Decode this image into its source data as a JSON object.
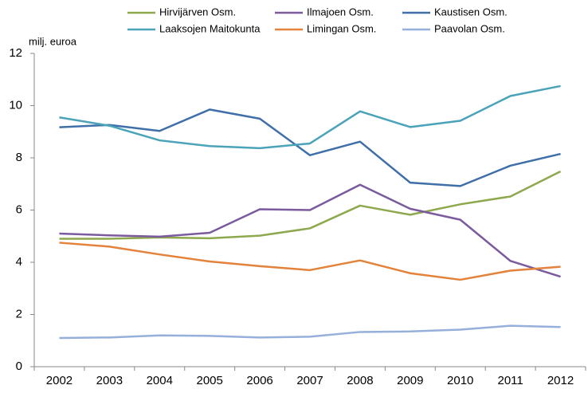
{
  "chart_data": {
    "type": "line",
    "y_axis_label": "milj. euroa",
    "categories": [
      "2002",
      "2003",
      "2004",
      "2005",
      "2006",
      "2007",
      "2008",
      "2009",
      "2010",
      "2011",
      "2012"
    ],
    "series": [
      {
        "name": "Hirvijärven Osm.",
        "color": "#8ea84d",
        "values": [
          4.9,
          4.9,
          4.95,
          4.92,
          5.02,
          5.3,
          6.17,
          5.82,
          6.22,
          6.52,
          7.48
        ]
      },
      {
        "name": "Ilmajoen Osm.",
        "color": "#7b5a9e",
        "values": [
          5.1,
          5.03,
          4.98,
          5.13,
          6.03,
          6.0,
          6.97,
          6.05,
          5.63,
          4.05,
          3.45
        ]
      },
      {
        "name": "Kaustisen Osm.",
        "color": "#3f6fa9",
        "values": [
          9.17,
          9.26,
          9.03,
          9.85,
          9.5,
          8.1,
          8.62,
          7.05,
          6.92,
          7.7,
          8.15
        ]
      },
      {
        "name": "Laaksojen Maitokunta",
        "color": "#4aa3b9",
        "values": [
          9.55,
          9.23,
          8.67,
          8.45,
          8.37,
          8.55,
          9.78,
          9.18,
          9.42,
          10.37,
          10.75
        ]
      },
      {
        "name": "Limingan Osm.",
        "color": "#e3823a",
        "values": [
          4.75,
          4.6,
          4.3,
          4.03,
          3.85,
          3.7,
          4.07,
          3.58,
          3.33,
          3.68,
          3.83
        ]
      },
      {
        "name": "Paavolan Osm.",
        "color": "#96b0dc",
        "values": [
          1.1,
          1.12,
          1.2,
          1.18,
          1.12,
          1.15,
          1.33,
          1.35,
          1.42,
          1.57,
          1.52
        ]
      }
    ],
    "ylim": [
      0,
      12
    ],
    "yticks": [
      0,
      2,
      4,
      6,
      8,
      10,
      12
    ],
    "grid": false
  }
}
